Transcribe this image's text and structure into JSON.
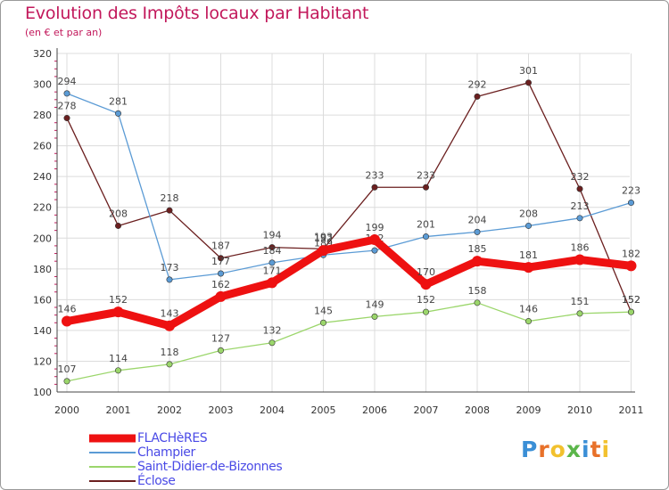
{
  "title": "Evolution des Impôts locaux par Habitant",
  "subtitle": "(en € et par an)",
  "logo": {
    "text": "Proxiti",
    "letters": [
      "P",
      "r",
      "o",
      "x",
      "i",
      "t",
      "i"
    ],
    "colors": [
      "#3b8fd6",
      "#e8712a",
      "#f2c12e",
      "#5bb64a",
      "#3b8fd6",
      "#e8712a",
      "#f2c12e"
    ]
  },
  "chart_data": {
    "type": "line",
    "title": "Evolution des Impôts locaux par Habitant",
    "subtitle": "(en € et par an)",
    "xlabel": "",
    "ylabel": "",
    "ylim": [
      100,
      320
    ],
    "yticks": [
      100,
      120,
      140,
      160,
      180,
      200,
      220,
      240,
      260,
      280,
      300,
      320
    ],
    "categories": [
      "2000",
      "2001",
      "2002",
      "2003",
      "2004",
      "2005",
      "2006",
      "2007",
      "2008",
      "2009",
      "2010",
      "2011"
    ],
    "grid": true,
    "legend_position": "bottom-left",
    "series": [
      {
        "name": "Éclose",
        "color": "#6b1f1f",
        "emphasis": false,
        "values": [
          278,
          208,
          218,
          187,
          194,
          193,
          233,
          233,
          292,
          301,
          232,
          152
        ]
      },
      {
        "name": "Champier",
        "color": "#5b9bd5",
        "emphasis": false,
        "values": [
          294,
          281,
          173,
          177,
          184,
          189,
          192,
          201,
          204,
          208,
          213,
          223
        ]
      },
      {
        "name": "Saint-Didier-de-Bizonnes",
        "color": "#9bd66b",
        "emphasis": false,
        "values": [
          107,
          114,
          118,
          127,
          132,
          145,
          149,
          152,
          158,
          146,
          151,
          152
        ]
      },
      {
        "name": "FLACHèRES",
        "color": "#ee1111",
        "emphasis": true,
        "values": [
          146,
          152,
          143,
          162,
          171,
          192,
          199,
          170,
          185,
          181,
          186,
          182
        ]
      }
    ],
    "legend": [
      {
        "name": "FLACHèRES",
        "color": "#ee1111",
        "emphasis": true
      },
      {
        "name": "Champier",
        "color": "#5b9bd5",
        "emphasis": false
      },
      {
        "name": "Saint-Didier-de-Bizonnes",
        "color": "#9bd66b",
        "emphasis": false
      },
      {
        "name": "Éclose",
        "color": "#6b1f1f",
        "emphasis": false
      }
    ]
  }
}
